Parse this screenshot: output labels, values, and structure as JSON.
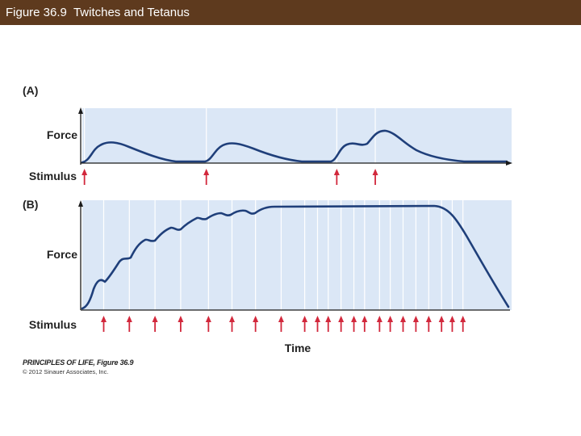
{
  "header": {
    "title": "Figure 36.9  Twitches and Tetanus"
  },
  "panel_a": {
    "label": "(A)",
    "y_label": "Force",
    "stimulus_label": "Stimulus",
    "stimulus_times": [
      0.5,
      29,
      59.5,
      68.5
    ]
  },
  "panel_b": {
    "label": "(B)",
    "y_label": "Force",
    "stimulus_label": "Stimulus",
    "x_label": "Time",
    "stimulus_times": [
      5,
      11,
      17,
      23,
      29.5,
      35,
      40.5,
      46.5,
      52,
      55,
      57.5,
      60.5,
      63.5,
      66,
      69.5,
      72,
      75,
      78,
      81,
      84,
      86.5,
      89
    ]
  },
  "credit": {
    "title": "PRINCIPLES OF LIFE, Figure 36.9",
    "copyright": "© 2012 Sinauer Associates, Inc."
  },
  "colors": {
    "header_bg": "#5e3a1e",
    "plot_bg": "#dbe7f6",
    "curve": "#1f3f7a",
    "arrow": "#d2283c"
  }
}
